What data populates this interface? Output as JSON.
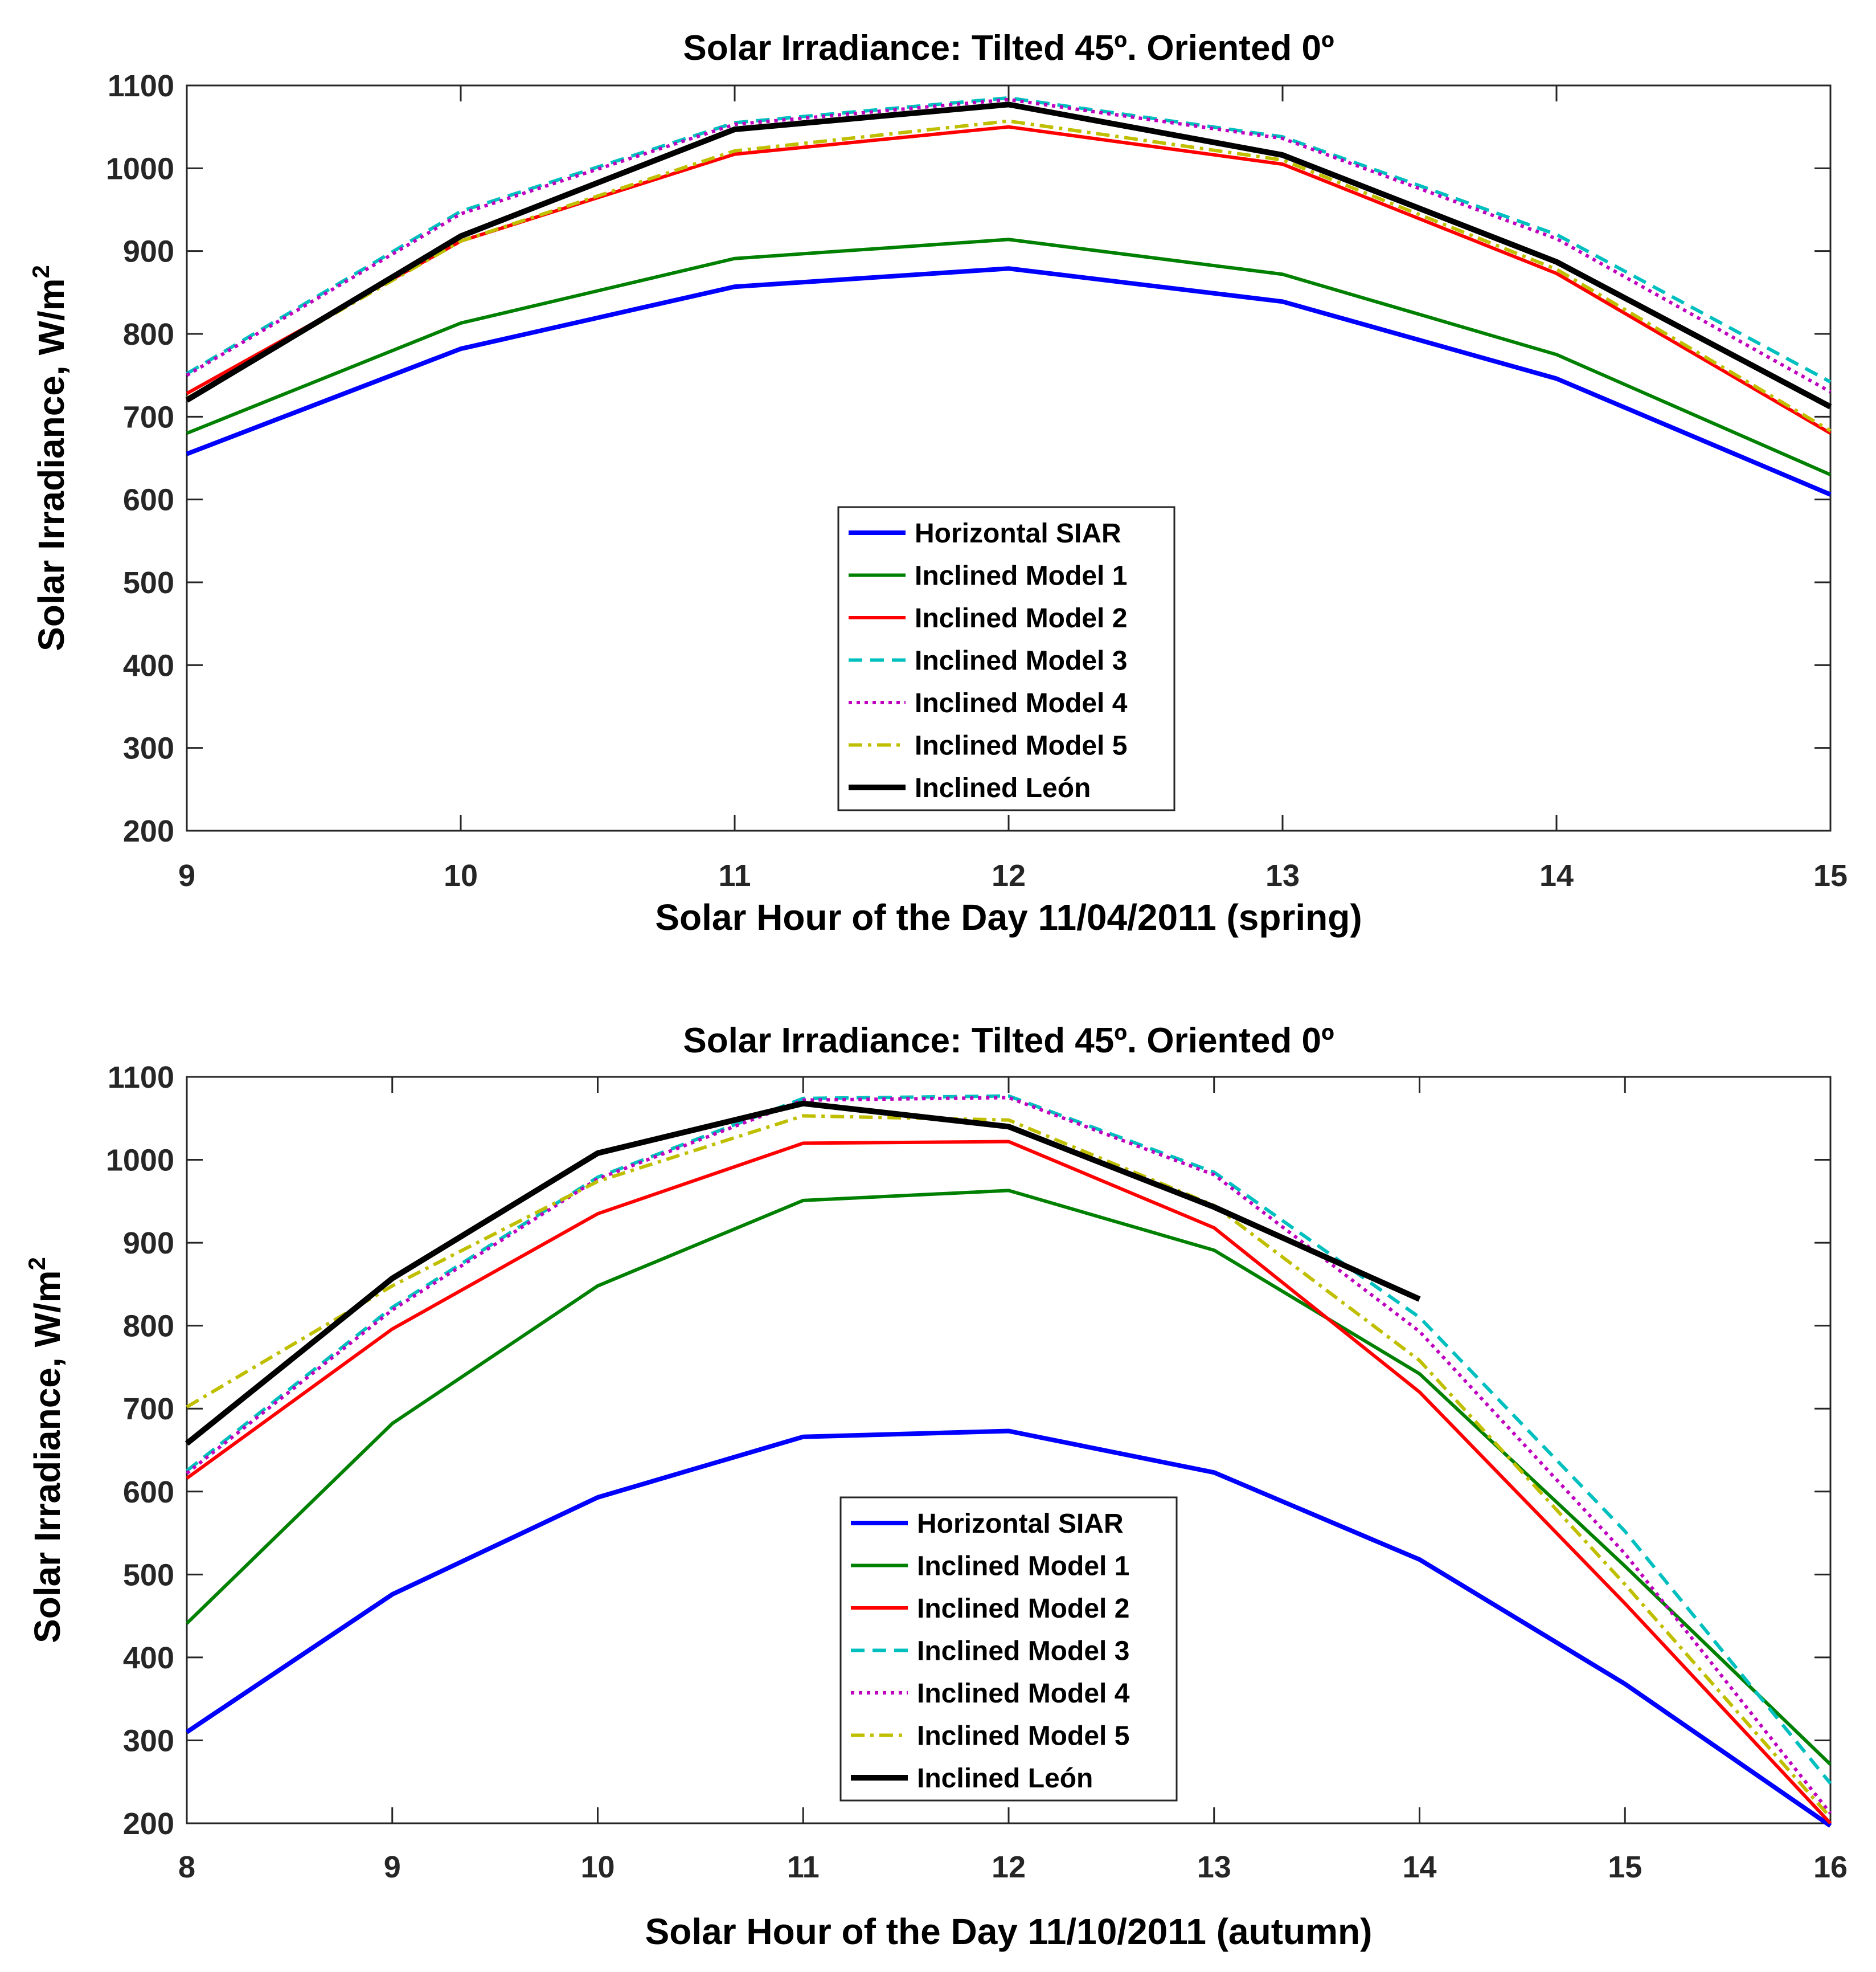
{
  "chart_data": [
    {
      "type": "line",
      "title": "Solar Irradiance: Tilted 45º. Oriented 0º",
      "xlabel": "Solar Hour of the Day 11/04/2011 (spring)",
      "ylabel": "Solar Irradiance, W/m",
      "ylabel_sup": "2",
      "xlim": [
        9,
        15
      ],
      "ylim": [
        200,
        1100
      ],
      "xticks": [
        9,
        10,
        11,
        12,
        13,
        14,
        15
      ],
      "yticks": [
        200,
        300,
        400,
        500,
        600,
        700,
        800,
        900,
        1000,
        1100
      ],
      "grid": false,
      "legend_position": "center-bottom",
      "series": [
        {
          "name": "Horizontal SIAR",
          "color": "#0000ff",
          "dash": "solid",
          "width": 8,
          "x": [
            9,
            10,
            11,
            12,
            13,
            14,
            15
          ],
          "y": [
            655,
            782,
            857,
            879,
            839,
            746,
            606
          ]
        },
        {
          "name": "Inclined Model 1",
          "color": "#008000",
          "dash": "solid",
          "width": 6,
          "x": [
            9,
            10,
            11,
            12,
            13,
            14,
            15
          ],
          "y": [
            680,
            813,
            891,
            914,
            872,
            775,
            630
          ]
        },
        {
          "name": "Inclined Model 2",
          "color": "#ff0000",
          "dash": "solid",
          "width": 6,
          "x": [
            9,
            10,
            11,
            12,
            13,
            14,
            15
          ],
          "y": [
            728,
            912,
            1017,
            1050,
            1005,
            873,
            680
          ]
        },
        {
          "name": "Inclined Model 3",
          "color": "#00bfbf",
          "dash": "dashed",
          "width": 6,
          "x": [
            9,
            10,
            11,
            12,
            13,
            14,
            15
          ],
          "y": [
            752,
            948,
            1055,
            1085,
            1038,
            920,
            742
          ]
        },
        {
          "name": "Inclined Model 4",
          "color": "#bf00bf",
          "dash": "dotted",
          "width": 6,
          "x": [
            9,
            10,
            11,
            12,
            13,
            14,
            15
          ],
          "y": [
            750,
            945,
            1053,
            1083,
            1036,
            915,
            730
          ]
        },
        {
          "name": "Inclined Model 5",
          "color": "#bfbf00",
          "dash": "dashdot",
          "width": 6,
          "x": [
            9,
            10,
            11,
            12,
            13,
            14,
            15
          ],
          "y": [
            722,
            912,
            1021,
            1057,
            1010,
            878,
            683
          ]
        },
        {
          "name": "Inclined León",
          "color": "#000000",
          "dash": "solid",
          "width": 10,
          "x": [
            9,
            10,
            11,
            12,
            13,
            14,
            15
          ],
          "y": [
            720,
            918,
            1047,
            1077,
            1016,
            887,
            712
          ]
        }
      ]
    },
    {
      "type": "line",
      "title": "Solar Irradiance: Tilted 45º. Oriented 0º",
      "xlabel": "Solar Hour of the Day 11/10/2011 (autumn)",
      "ylabel": "Solar Irradiance, W/m",
      "ylabel_sup": "2",
      "xlim": [
        8,
        16
      ],
      "ylim": [
        200,
        1100
      ],
      "xticks": [
        8,
        9,
        10,
        11,
        12,
        13,
        14,
        15,
        16
      ],
      "yticks": [
        200,
        300,
        400,
        500,
        600,
        700,
        800,
        900,
        1000,
        1100
      ],
      "grid": false,
      "legend_position": "center-bottom",
      "series": [
        {
          "name": "Horizontal SIAR",
          "color": "#0000ff",
          "dash": "solid",
          "width": 8,
          "x": [
            8,
            9,
            10,
            11,
            12,
            13,
            14,
            15,
            16
          ],
          "y": [
            310,
            476,
            593,
            666,
            673,
            623,
            518,
            368,
            197
          ]
        },
        {
          "name": "Inclined Model 1",
          "color": "#008000",
          "dash": "solid",
          "width": 6,
          "x": [
            8,
            9,
            10,
            11,
            12,
            13,
            14,
            15,
            16
          ],
          "y": [
            441,
            682,
            848,
            951,
            963,
            891,
            742,
            510,
            271
          ]
        },
        {
          "name": "Inclined Model 2",
          "color": "#ff0000",
          "dash": "solid",
          "width": 6,
          "x": [
            8,
            9,
            10,
            11,
            12,
            13,
            14,
            15,
            16
          ],
          "y": [
            616,
            796,
            935,
            1020,
            1022,
            918,
            720,
            465,
            200
          ]
        },
        {
          "name": "Inclined Model 3",
          "color": "#00bfbf",
          "dash": "dashed",
          "width": 6,
          "x": [
            8,
            9,
            10,
            11,
            12,
            13,
            14,
            15,
            16
          ],
          "y": [
            625,
            822,
            979,
            1074,
            1077,
            985,
            810,
            552,
            248
          ]
        },
        {
          "name": "Inclined Model 4",
          "color": "#bf00bf",
          "dash": "dotted",
          "width": 6,
          "x": [
            8,
            9,
            10,
            11,
            12,
            13,
            14,
            15,
            16
          ],
          "y": [
            622,
            819,
            977,
            1072,
            1075,
            982,
            793,
            525,
            212
          ]
        },
        {
          "name": "Inclined Model 5",
          "color": "#bfbf00",
          "dash": "dashdot",
          "width": 6,
          "x": [
            8,
            9,
            10,
            11,
            12,
            13,
            14,
            15,
            16
          ],
          "y": [
            702,
            848,
            974,
            1053,
            1048,
            945,
            758,
            488,
            207
          ]
        },
        {
          "name": "Inclined León",
          "color": "#000000",
          "dash": "solid",
          "width": 10,
          "x": [
            8,
            9,
            10,
            11,
            12,
            13,
            14
          ],
          "y": [
            658,
            857,
            1008,
            1068,
            1040,
            943,
            832
          ]
        }
      ]
    }
  ]
}
